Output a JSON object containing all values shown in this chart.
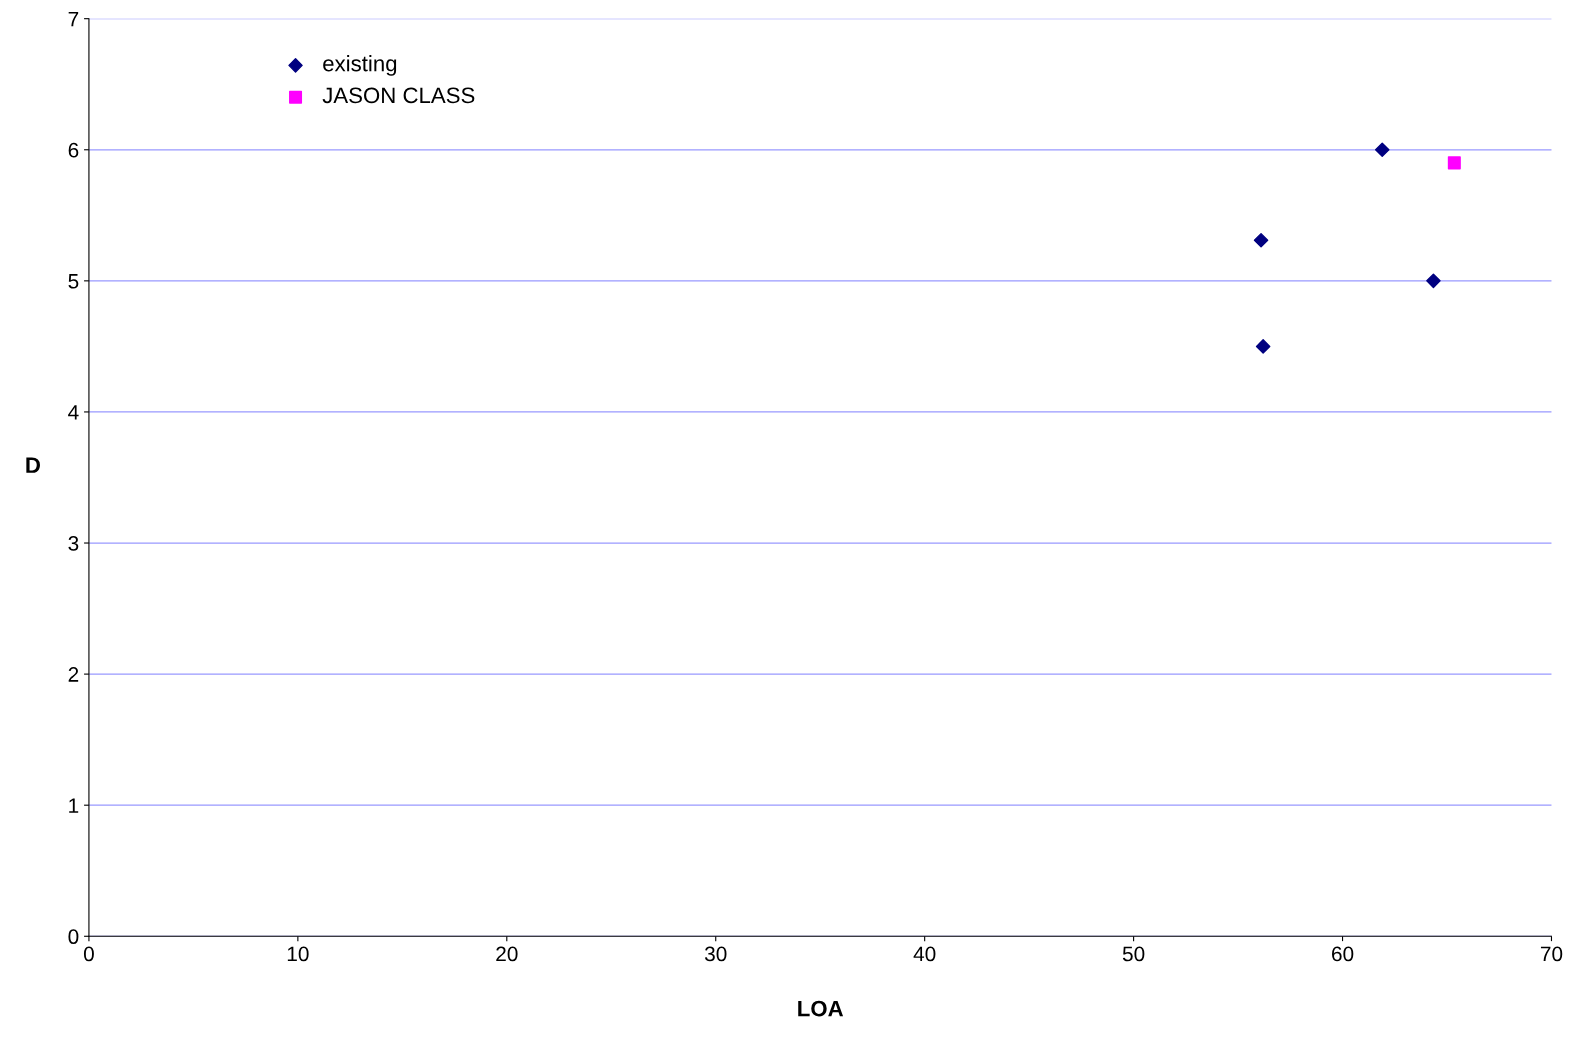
{
  "chart_data": {
    "type": "scatter",
    "xlabel": "LOA",
    "ylabel": "D",
    "xlim": [
      0,
      70
    ],
    "xticks": [
      0,
      10,
      20,
      30,
      40,
      50,
      60,
      70
    ],
    "ylim": [
      0,
      7
    ],
    "yticks": [
      0,
      1,
      2,
      3,
      4,
      5,
      6,
      7
    ],
    "grid": "y",
    "legend": "top left",
    "series": [
      {
        "name": "existing",
        "color": "#000080",
        "marker": "diamond",
        "x": [
          56.1,
          56.2,
          61.9,
          64.35
        ],
        "values": [
          5.31,
          4.5,
          6.0,
          5.0
        ]
      },
      {
        "name": "JASON CLASS",
        "color": "#ff00ff",
        "marker": "square",
        "x": [
          65.35
        ],
        "values": [
          5.9
        ]
      }
    ]
  }
}
